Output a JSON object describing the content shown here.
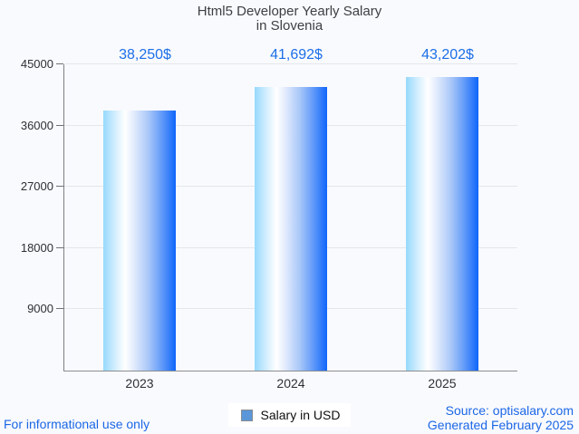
{
  "title": {
    "line1": "Html5 Developer Yearly Salary",
    "line2": "in Slovenia"
  },
  "chart_data": {
    "type": "bar",
    "title": "Html5 Developer Yearly Salary in Slovenia",
    "categories": [
      "2023",
      "2024",
      "2025"
    ],
    "values": [
      38250,
      41692,
      43202
    ],
    "value_labels": [
      "38,250$",
      "41,692$",
      "43,202$"
    ],
    "series": [
      {
        "name": "Salary in USD",
        "values": [
          38250,
          41692,
          43202
        ]
      }
    ],
    "xlabel": "",
    "ylabel": "",
    "ylim": [
      0,
      45000
    ],
    "yticks": [
      9000,
      18000,
      27000,
      36000,
      45000
    ],
    "grid": true,
    "legend_position": "bottom"
  },
  "legend": {
    "label": "Salary in USD",
    "swatch_color": "#5a96d8"
  },
  "footer": {
    "left": "For informational use only",
    "source": "Source: optisalary.com",
    "generated": "Generated February 2025"
  },
  "colors": {
    "background": "#f9fafd",
    "title_text": "#3d3f42",
    "value_label_text": "#1c6fe8",
    "footer_text": "#1b67e6",
    "bar_gradient_left": "#96d9fc",
    "bar_gradient_mid": "#ffffff",
    "bar_gradient_right": "#0f66fa",
    "gridline": "#e4e6ea",
    "axis_line": "#7c7f84",
    "legend_swatch": "#5a96d8"
  }
}
